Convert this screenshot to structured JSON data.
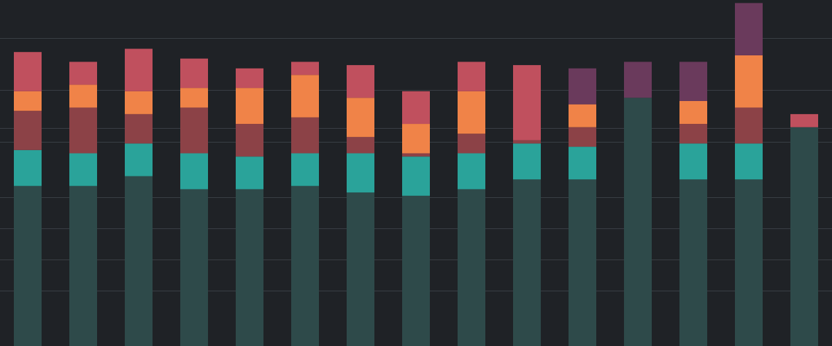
{
  "chart_data": {
    "type": "bar",
    "stacked": true,
    "grid": true,
    "ylim": [
      0,
      100
    ],
    "categories": [
      "",
      "",
      "",
      "",
      "",
      "",
      "",
      "",
      "",
      "",
      "",
      "",
      "",
      "",
      ""
    ],
    "series": [
      {
        "values": [
          49,
          49,
          52,
          48,
          48,
          49,
          47,
          46,
          48,
          51,
          51,
          76,
          51,
          51,
          67
        ]
      },
      {
        "values": [
          11,
          10,
          10,
          11,
          10,
          10,
          12,
          12,
          11,
          11,
          10,
          0,
          11,
          11,
          0
        ]
      },
      {
        "values": [
          12,
          14,
          9,
          14,
          10,
          11,
          5,
          1,
          6,
          1,
          6,
          0,
          6,
          11,
          0
        ]
      },
      {
        "values": [
          6,
          7,
          7,
          6,
          11,
          13,
          12,
          9,
          13,
          0,
          7,
          0,
          7,
          16,
          0
        ]
      },
      {
        "values": [
          12,
          7,
          13,
          9,
          6,
          4,
          10,
          10,
          9,
          23,
          0,
          0,
          0,
          0,
          4
        ]
      },
      {
        "values": [
          0,
          0,
          0,
          0,
          0,
          0,
          0,
          0,
          0,
          0,
          11,
          11,
          12,
          16,
          0
        ]
      }
    ],
    "colors": [
      "#2e4a4a",
      "#2aa39a",
      "#8c4247",
      "#f08348",
      "#c0505e",
      "#6a3a5c"
    ],
    "ticks": [],
    "top_labels": [
      "",
      "",
      "",
      "",
      "",
      "",
      "",
      "",
      "",
      "",
      "",
      "",
      "",
      "",
      ""
    ],
    "inner_labels": []
  }
}
